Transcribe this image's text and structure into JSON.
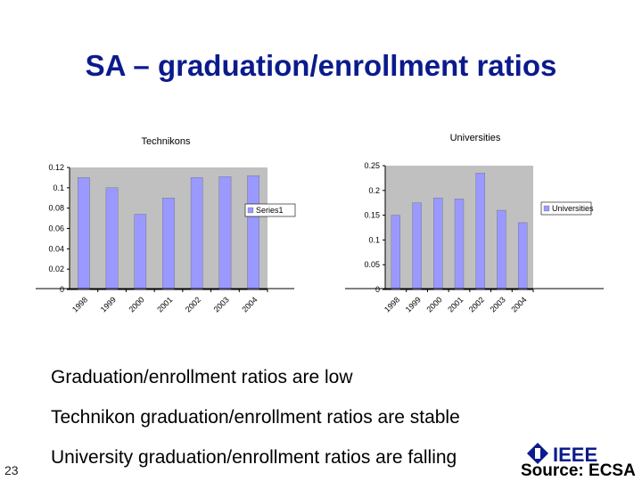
{
  "slide": {
    "title": "SA – graduation/enrollment ratios",
    "bullets": [
      "Graduation/enrollment ratios are low",
      "Technikon graduation/enrollment ratios are stable",
      "University graduation/enrollment ratios are falling"
    ],
    "page_number": "23",
    "logo_text": "IEEE",
    "source": "Source: ECSA"
  },
  "colors": {
    "title": "#0b1b8c",
    "bar": "#9999ff",
    "plot_bg": "#c0c0c0"
  },
  "chart_data": [
    {
      "type": "bar",
      "title": "Technikons",
      "categories": [
        "1998",
        "1999",
        "2000",
        "2001",
        "2002",
        "2003",
        "2004"
      ],
      "series": [
        {
          "name": "Series1",
          "values": [
            0.11,
            0.1,
            0.074,
            0.09,
            0.11,
            0.111,
            0.112
          ]
        }
      ],
      "ylim": [
        0,
        0.12
      ],
      "yticks": [
        "0",
        "0.02",
        "0.04",
        "0.06",
        "0.08",
        "0.1",
        "0.12"
      ],
      "grid": false,
      "legend": "right"
    },
    {
      "type": "bar",
      "title": "Universities",
      "categories": [
        "1998",
        "1999",
        "2000",
        "2001",
        "2002",
        "2003",
        "2004"
      ],
      "series": [
        {
          "name": "Universities",
          "values": [
            0.15,
            0.175,
            0.185,
            0.183,
            0.235,
            0.16,
            0.135
          ]
        }
      ],
      "ylim": [
        0,
        0.25
      ],
      "yticks": [
        "0",
        "0.05",
        "0.1",
        "0.15",
        "0.2",
        "0.25"
      ],
      "grid": false,
      "legend": "right"
    }
  ]
}
